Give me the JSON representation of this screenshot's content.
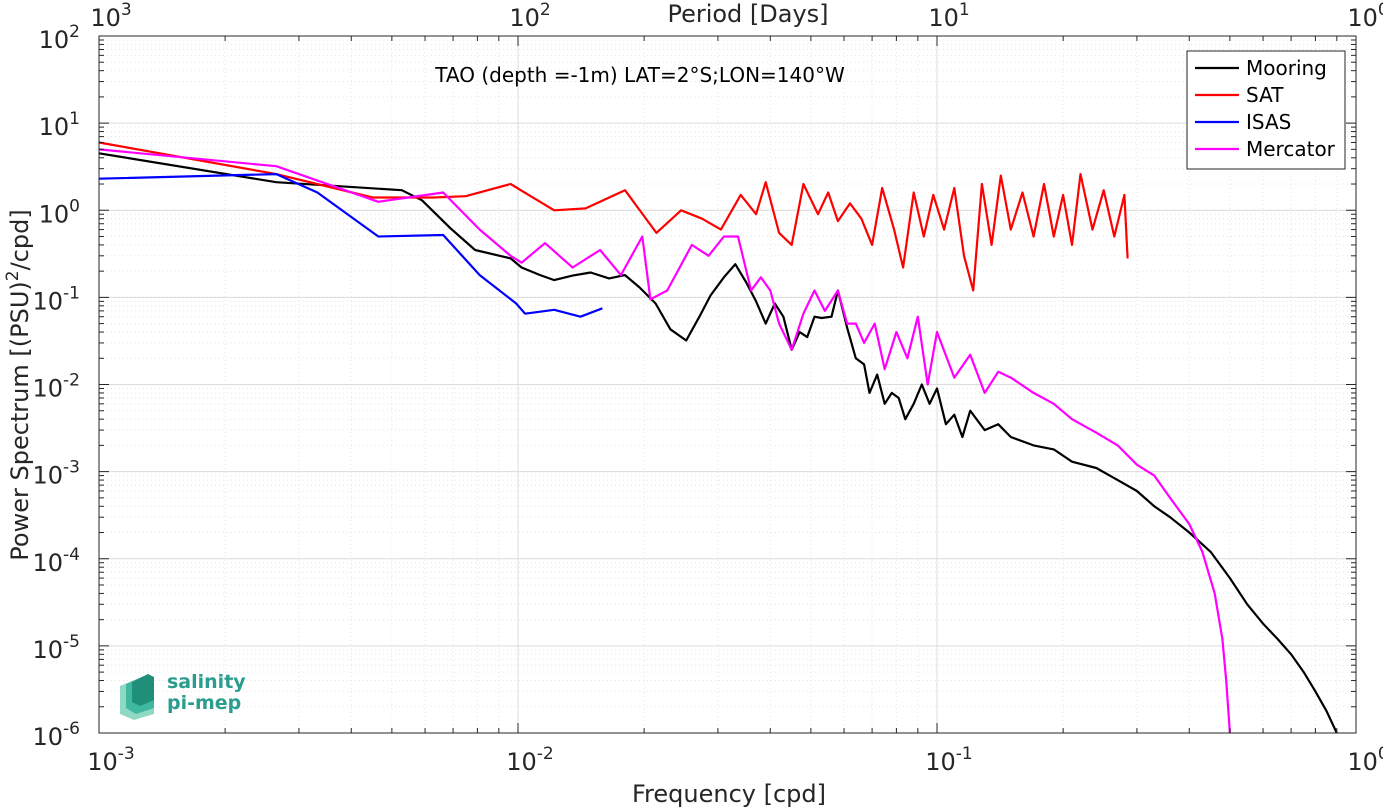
{
  "chart_data": {
    "type": "line",
    "title": "TAO (depth =-1m) LAT=2°S;LON=140°W",
    "xlabel": "Frequency [cpd]",
    "ylabel": "Power Spectrum [(PSU)²/cpd]",
    "x2label": "Period [Days]",
    "xscale": "log",
    "yscale": "log",
    "xlim": [
      0.001,
      1
    ],
    "ylim": [
      1e-06,
      100
    ],
    "grid": true,
    "legend_position": "top-right",
    "x_ticks": [
      {
        "base": "10",
        "exp": "-3"
      },
      {
        "base": "10",
        "exp": "-2"
      },
      {
        "base": "10",
        "exp": "-1"
      },
      {
        "base": "10",
        "exp": "0"
      }
    ],
    "x2_ticks": [
      {
        "base": "10",
        "exp": "3"
      },
      {
        "base": "10",
        "exp": "2"
      },
      {
        "base": "10",
        "exp": "1"
      },
      {
        "base": "10",
        "exp": "0"
      }
    ],
    "y_ticks": [
      {
        "base": "10",
        "exp": "-6"
      },
      {
        "base": "10",
        "exp": "-5"
      },
      {
        "base": "10",
        "exp": "-4"
      },
      {
        "base": "10",
        "exp": "-3"
      },
      {
        "base": "10",
        "exp": "-2"
      },
      {
        "base": "10",
        "exp": "-1"
      },
      {
        "base": "10",
        "exp": "0"
      },
      {
        "base": "10",
        "exp": "1"
      },
      {
        "base": "10",
        "exp": "2"
      }
    ],
    "series": [
      {
        "name": "Mooring",
        "color": "#000000",
        "points": [
          [
            0.001,
            4.5
          ],
          [
            0.00265,
            2.1
          ],
          [
            0.00528,
            1.7
          ],
          [
            0.0059,
            1.3
          ],
          [
            0.0069,
            0.62
          ],
          [
            0.0079,
            0.35
          ],
          [
            0.0096,
            0.28
          ],
          [
            0.0102,
            0.22
          ],
          [
            0.0113,
            0.18
          ],
          [
            0.0122,
            0.158
          ],
          [
            0.0135,
            0.178
          ],
          [
            0.0149,
            0.193
          ],
          [
            0.0165,
            0.165
          ],
          [
            0.018,
            0.18
          ],
          [
            0.0195,
            0.13
          ],
          [
            0.0213,
            0.085
          ],
          [
            0.0231,
            0.043
          ],
          [
            0.0252,
            0.032
          ],
          [
            0.0271,
            0.06
          ],
          [
            0.0288,
            0.105
          ],
          [
            0.031,
            0.17
          ],
          [
            0.033,
            0.24
          ],
          [
            0.035,
            0.15
          ],
          [
            0.037,
            0.09
          ],
          [
            0.039,
            0.05
          ],
          [
            0.041,
            0.085
          ],
          [
            0.043,
            0.06
          ],
          [
            0.045,
            0.025
          ],
          [
            0.047,
            0.04
          ],
          [
            0.049,
            0.035
          ],
          [
            0.051,
            0.06
          ],
          [
            0.053,
            0.058
          ],
          [
            0.056,
            0.06
          ],
          [
            0.058,
            0.12
          ],
          [
            0.061,
            0.045
          ],
          [
            0.064,
            0.02
          ],
          [
            0.067,
            0.017
          ],
          [
            0.069,
            0.008
          ],
          [
            0.072,
            0.013
          ],
          [
            0.075,
            0.006
          ],
          [
            0.078,
            0.008
          ],
          [
            0.081,
            0.007
          ],
          [
            0.084,
            0.004
          ],
          [
            0.088,
            0.006
          ],
          [
            0.092,
            0.01
          ],
          [
            0.096,
            0.006
          ],
          [
            0.1,
            0.009
          ],
          [
            0.105,
            0.0035
          ],
          [
            0.11,
            0.0045
          ],
          [
            0.115,
            0.0025
          ],
          [
            0.12,
            0.005
          ],
          [
            0.13,
            0.003
          ],
          [
            0.14,
            0.0035
          ],
          [
            0.15,
            0.0025
          ],
          [
            0.17,
            0.002
          ],
          [
            0.19,
            0.0018
          ],
          [
            0.21,
            0.0013
          ],
          [
            0.24,
            0.0011
          ],
          [
            0.27,
            0.0008
          ],
          [
            0.3,
            0.0006
          ],
          [
            0.33,
            0.0004
          ],
          [
            0.36,
            0.0003
          ],
          [
            0.4,
            0.0002
          ],
          [
            0.45,
            0.00012
          ],
          [
            0.5,
            6e-05
          ],
          [
            0.55,
            3e-05
          ],
          [
            0.6,
            1.8e-05
          ],
          [
            0.65,
            1.2e-05
          ],
          [
            0.7,
            8e-06
          ],
          [
            0.75,
            5e-06
          ],
          [
            0.8,
            3e-06
          ],
          [
            0.85,
            1.8e-06
          ],
          [
            0.9,
            1e-06
          ]
        ]
      },
      {
        "name": "SAT",
        "color": "#ff0000",
        "points": [
          [
            0.001,
            6.0
          ],
          [
            0.00265,
            2.6
          ],
          [
            0.0045,
            1.4
          ],
          [
            0.0063,
            1.4
          ],
          [
            0.0075,
            1.45
          ],
          [
            0.0096,
            2.0
          ],
          [
            0.0106,
            1.5
          ],
          [
            0.0122,
            1.0
          ],
          [
            0.0145,
            1.05
          ],
          [
            0.018,
            1.7
          ],
          [
            0.0214,
            0.55
          ],
          [
            0.0245,
            1.0
          ],
          [
            0.0275,
            0.8
          ],
          [
            0.0305,
            0.6
          ],
          [
            0.034,
            1.5
          ],
          [
            0.037,
            0.9
          ],
          [
            0.039,
            2.1
          ],
          [
            0.042,
            0.55
          ],
          [
            0.045,
            0.4
          ],
          [
            0.048,
            2.0
          ],
          [
            0.052,
            0.9
          ],
          [
            0.055,
            1.6
          ],
          [
            0.058,
            0.75
          ],
          [
            0.062,
            1.2
          ],
          [
            0.066,
            0.8
          ],
          [
            0.07,
            0.4
          ],
          [
            0.074,
            1.8
          ],
          [
            0.079,
            0.6
          ],
          [
            0.083,
            0.22
          ],
          [
            0.088,
            1.6
          ],
          [
            0.093,
            0.5
          ],
          [
            0.098,
            1.5
          ],
          [
            0.104,
            0.6
          ],
          [
            0.11,
            1.8
          ],
          [
            0.116,
            0.3
          ],
          [
            0.122,
            0.12
          ],
          [
            0.128,
            2.0
          ],
          [
            0.135,
            0.4
          ],
          [
            0.142,
            2.5
          ],
          [
            0.15,
            0.6
          ],
          [
            0.16,
            1.6
          ],
          [
            0.17,
            0.5
          ],
          [
            0.18,
            2.0
          ],
          [
            0.19,
            0.5
          ],
          [
            0.2,
            1.5
          ],
          [
            0.21,
            0.4
          ],
          [
            0.22,
            2.6
          ],
          [
            0.235,
            0.6
          ],
          [
            0.25,
            1.7
          ],
          [
            0.265,
            0.5
          ],
          [
            0.28,
            1.5
          ],
          [
            0.285,
            0.28
          ]
        ]
      },
      {
        "name": "ISAS",
        "color": "#0000ff",
        "points": [
          [
            0.001,
            2.3
          ],
          [
            0.00265,
            2.6
          ],
          [
            0.00332,
            1.6
          ],
          [
            0.00464,
            0.5
          ],
          [
            0.00663,
            0.52
          ],
          [
            0.0081,
            0.18
          ],
          [
            0.0099,
            0.085
          ],
          [
            0.0104,
            0.065
          ],
          [
            0.0122,
            0.072
          ],
          [
            0.0141,
            0.06
          ],
          [
            0.0159,
            0.075
          ]
        ]
      },
      {
        "name": "Mercator",
        "color": "#ff00ff",
        "points": [
          [
            0.001,
            5.0
          ],
          [
            0.00265,
            3.2
          ],
          [
            0.00464,
            1.25
          ],
          [
            0.00663,
            1.6
          ],
          [
            0.0081,
            0.6
          ],
          [
            0.0096,
            0.3
          ],
          [
            0.0102,
            0.25
          ],
          [
            0.0116,
            0.42
          ],
          [
            0.0135,
            0.22
          ],
          [
            0.0157,
            0.35
          ],
          [
            0.0176,
            0.18
          ],
          [
            0.0198,
            0.5
          ],
          [
            0.0207,
            0.095
          ],
          [
            0.0227,
            0.12
          ],
          [
            0.026,
            0.4
          ],
          [
            0.0285,
            0.3
          ],
          [
            0.031,
            0.5
          ],
          [
            0.0335,
            0.5
          ],
          [
            0.036,
            0.12
          ],
          [
            0.038,
            0.17
          ],
          [
            0.04,
            0.12
          ],
          [
            0.042,
            0.05
          ],
          [
            0.045,
            0.025
          ],
          [
            0.048,
            0.065
          ],
          [
            0.051,
            0.12
          ],
          [
            0.054,
            0.07
          ],
          [
            0.058,
            0.12
          ],
          [
            0.061,
            0.05
          ],
          [
            0.064,
            0.05
          ],
          [
            0.067,
            0.03
          ],
          [
            0.071,
            0.05
          ],
          [
            0.075,
            0.015
          ],
          [
            0.08,
            0.04
          ],
          [
            0.085,
            0.02
          ],
          [
            0.09,
            0.06
          ],
          [
            0.095,
            0.01
          ],
          [
            0.1,
            0.04
          ],
          [
            0.11,
            0.012
          ],
          [
            0.12,
            0.022
          ],
          [
            0.13,
            0.008
          ],
          [
            0.14,
            0.014
          ],
          [
            0.15,
            0.012
          ],
          [
            0.17,
            0.008
          ],
          [
            0.19,
            0.006
          ],
          [
            0.21,
            0.004
          ],
          [
            0.24,
            0.0028
          ],
          [
            0.27,
            0.002
          ],
          [
            0.3,
            0.0012
          ],
          [
            0.33,
            0.0009
          ],
          [
            0.36,
            0.0005
          ],
          [
            0.4,
            0.00025
          ],
          [
            0.43,
            0.00012
          ],
          [
            0.46,
            4e-05
          ],
          [
            0.48,
            1.2e-05
          ],
          [
            0.49,
            4e-06
          ],
          [
            0.5,
            1e-06
          ]
        ]
      }
    ]
  },
  "logo": {
    "line1": "salinity",
    "line2": "pi-mep"
  },
  "colors": {
    "logo": "#2a9d8f"
  }
}
